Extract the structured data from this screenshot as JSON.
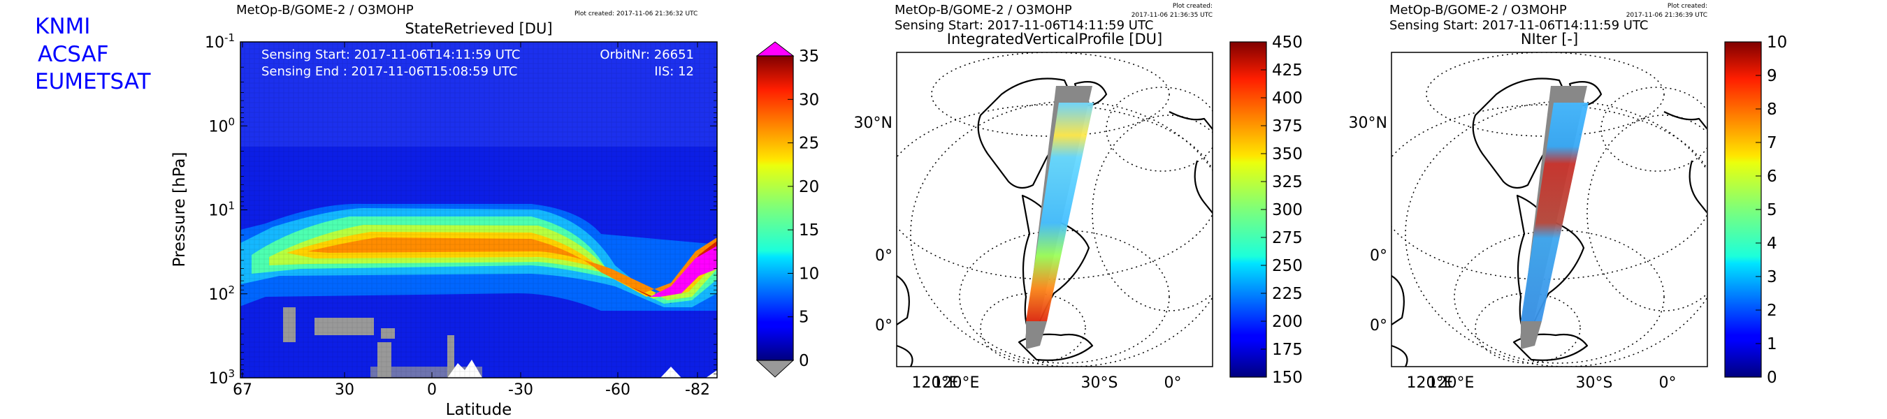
{
  "logo_lines": [
    "KNMI",
    "ACSAF",
    "EUMETSAT"
  ],
  "logo_color": "#0000ff",
  "figures": [
    {
      "header": "MetOp-B/GOME-2 / O3MOHP",
      "plot_created": "Plot created: 2017-11-06 21:36:32 UTC",
      "title": "StateRetrieved [DU]",
      "info_left": [
        "Sensing Start: 2017-11-06T14:11:59 UTC",
        "Sensing End  : 2017-11-06T15:08:59 UTC"
      ],
      "info_right": [
        "OrbitNr: 26651",
        "IIS: 12"
      ],
      "colorbar_ticks": [
        "35",
        "30",
        "25",
        "20",
        "15",
        "10",
        "5",
        "0"
      ]
    },
    {
      "header": "MetOp-B/GOME-2 / O3MOHP",
      "plot_created": "Plot created:\n2017-11-06 21:36:35 UTC",
      "sensing": "Sensing Start: 2017-11-06T14:11:59 UTC",
      "title": "IntegratedVerticalProfile [DU]",
      "lat_labels": [
        "30°N",
        "0°",
        "0°"
      ],
      "lon_labels": [
        "120°E",
        "120°E",
        "30°S",
        "0°"
      ],
      "colorbar_ticks": [
        "450",
        "425",
        "400",
        "375",
        "350",
        "325",
        "300",
        "275",
        "250",
        "225",
        "200",
        "175",
        "150"
      ]
    },
    {
      "header": "MetOp-B/GOME-2 / O3MOHP",
      "plot_created": "Plot created:\n2017-11-06 21:36:39 UTC",
      "sensing": "Sensing Start: 2017-11-06T14:11:59 UTC",
      "title": "NIter [-]",
      "lat_labels": [
        "30°N",
        "0°",
        "0°"
      ],
      "lon_labels": [
        "120°E",
        "120°E",
        "30°S",
        "0°"
      ],
      "colorbar_ticks": [
        "10",
        "9",
        "8",
        "7",
        "6",
        "5",
        "4",
        "3",
        "2",
        "1",
        "0"
      ]
    }
  ],
  "chart_data": [
    {
      "type": "heatmap",
      "title": "StateRetrieved [DU]",
      "xlabel": "Latitude",
      "ylabel": "Pressure [hPa]",
      "x_ticks": [
        "67",
        "30",
        "0",
        "-30",
        "-60",
        "-82"
      ],
      "y_ticks": [
        "10^-1",
        "10^0",
        "10^1",
        "10^2",
        "10^3"
      ],
      "y_scale": "log",
      "ylim": [
        1000,
        0.1
      ],
      "xlim": [
        67,
        -90
      ],
      "colorbar": {
        "min": 0,
        "max": 35,
        "extend": "both",
        "over_color": "#ff00ff",
        "under_color": "#999999"
      },
      "features": [
        {
          "description": "ozone layer maximum",
          "latitude_range": [
            55,
            -55
          ],
          "pressure_range": [
            15,
            50
          ],
          "value": 30
        },
        {
          "description": "southern polar enhancement",
          "latitude_range": [
            -70,
            -90
          ],
          "pressure_range": [
            15,
            100
          ],
          "value": 35
        }
      ]
    },
    {
      "type": "map",
      "title": "IntegratedVerticalProfile [DU]",
      "colorbar": {
        "min": 150,
        "max": 450
      },
      "swath_values": {
        "north": 300,
        "tropics": 250,
        "south_midlat": 350,
        "antarctic": 430
      }
    },
    {
      "type": "map",
      "title": "NIter [-]",
      "colorbar": {
        "min": 0,
        "max": 10
      },
      "swath_values": {
        "north": 3,
        "tropics": 9,
        "south_midlat": 3,
        "antarctic": 3
      }
    }
  ]
}
